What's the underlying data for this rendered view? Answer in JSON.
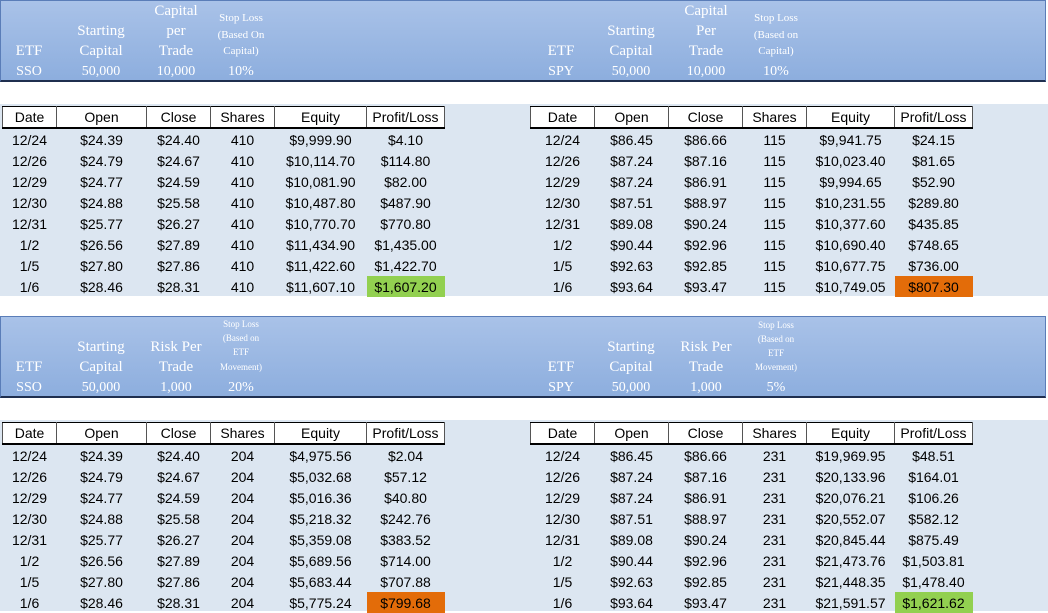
{
  "sections": [
    {
      "band": {
        "left": {
          "labels": {
            "etf": "ETF",
            "starting_l1": "Starting",
            "starting_l2": "Capital",
            "capital_l1": "Capital",
            "capital_l2": "per",
            "capital_l3": "Trade",
            "stop_l1": "Stop Loss",
            "stop_l2": "(Based On",
            "stop_l3": "Capital)"
          },
          "values": {
            "etf": "SSO",
            "starting": "50,000",
            "capital": "10,000",
            "stop": "10%"
          }
        },
        "right": {
          "labels": {
            "etf": "ETF",
            "starting_l1": "Starting",
            "starting_l2": "Capital",
            "capital_l1": "Capital",
            "capital_l2": "Per",
            "capital_l3": "Trade",
            "stop_l1": "Stop Loss",
            "stop_l2": "(Based on",
            "stop_l3": "Capital)"
          },
          "values": {
            "etf": "SPY",
            "starting": "50,000",
            "capital": "10,000",
            "stop": "10%"
          }
        }
      },
      "tables": {
        "left": {
          "headers": [
            "Date",
            "Open",
            "Close",
            "Shares",
            "Equity",
            "Profit/Loss"
          ],
          "rows": [
            [
              "12/24",
              "$24.39",
              "$24.40",
              "410",
              "$9,999.90",
              "$4.10"
            ],
            [
              "12/26",
              "$24.79",
              "$24.67",
              "410",
              "$10,114.70",
              "$114.80"
            ],
            [
              "12/29",
              "$24.77",
              "$24.59",
              "410",
              "$10,081.90",
              "$82.00"
            ],
            [
              "12/30",
              "$24.88",
              "$25.58",
              "410",
              "$10,487.80",
              "$487.90"
            ],
            [
              "12/31",
              "$25.77",
              "$26.27",
              "410",
              "$10,770.70",
              "$770.80"
            ],
            [
              "1/2",
              "$26.56",
              "$27.89",
              "410",
              "$11,434.90",
              "$1,435.00"
            ],
            [
              "1/5",
              "$27.80",
              "$27.86",
              "410",
              "$11,422.60",
              "$1,422.70"
            ],
            [
              "1/6",
              "$28.46",
              "$28.31",
              "410",
              "$11,607.10",
              "$1,607.20"
            ]
          ],
          "highlight": "green"
        },
        "right": {
          "headers": [
            "Date",
            "Open",
            "Close",
            "Shares",
            "Equity",
            "Profit/Loss"
          ],
          "rows": [
            [
              "12/24",
              "$86.45",
              "$86.66",
              "115",
              "$9,941.75",
              "$24.15"
            ],
            [
              "12/26",
              "$87.24",
              "$87.16",
              "115",
              "$10,023.40",
              "$81.65"
            ],
            [
              "12/29",
              "$87.24",
              "$86.91",
              "115",
              "$9,994.65",
              "$52.90"
            ],
            [
              "12/30",
              "$87.51",
              "$88.97",
              "115",
              "$10,231.55",
              "$289.80"
            ],
            [
              "12/31",
              "$89.08",
              "$90.24",
              "115",
              "$10,377.60",
              "$435.85"
            ],
            [
              "1/2",
              "$90.44",
              "$92.96",
              "115",
              "$10,690.40",
              "$748.65"
            ],
            [
              "1/5",
              "$92.63",
              "$92.85",
              "115",
              "$10,677.75",
              "$736.00"
            ],
            [
              "1/6",
              "$93.64",
              "$93.47",
              "115",
              "$10,749.05",
              "$807.30"
            ]
          ],
          "highlight": "orange"
        }
      }
    },
    {
      "band": {
        "left": {
          "labels": {
            "etf": "ETF",
            "starting_l1": "Starting",
            "starting_l2": "Capital",
            "risk_l1": "Risk Per",
            "risk_l2": "Trade",
            "stop_l1": "Stop Loss",
            "stop_l2": "(Based on",
            "stop_l3": "ETF",
            "stop_l4": "Movement)"
          },
          "values": {
            "etf": "SSO",
            "starting": "50,000",
            "risk": "1,000",
            "stop": "20%"
          }
        },
        "right": {
          "labels": {
            "etf": "ETF",
            "starting_l1": "Starting",
            "starting_l2": "Capital",
            "risk_l1": "Risk Per",
            "risk_l2": "Trade",
            "stop_l1": "Stop Loss",
            "stop_l2": "(Based on",
            "stop_l3": "ETF",
            "stop_l4": "Movement)"
          },
          "values": {
            "etf": "SPY",
            "starting": "50,000",
            "risk": "1,000",
            "stop": "5%"
          }
        }
      },
      "tables": {
        "left": {
          "headers": [
            "Date",
            "Open",
            "Close",
            "Shares",
            "Equity",
            "Profit/Loss"
          ],
          "rows": [
            [
              "12/24",
              "$24.39",
              "$24.40",
              "204",
              "$4,975.56",
              "$2.04"
            ],
            [
              "12/26",
              "$24.79",
              "$24.67",
              "204",
              "$5,032.68",
              "$57.12"
            ],
            [
              "12/29",
              "$24.77",
              "$24.59",
              "204",
              "$5,016.36",
              "$40.80"
            ],
            [
              "12/30",
              "$24.88",
              "$25.58",
              "204",
              "$5,218.32",
              "$242.76"
            ],
            [
              "12/31",
              "$25.77",
              "$26.27",
              "204",
              "$5,359.08",
              "$383.52"
            ],
            [
              "1/2",
              "$26.56",
              "$27.89",
              "204",
              "$5,689.56",
              "$714.00"
            ],
            [
              "1/5",
              "$27.80",
              "$27.86",
              "204",
              "$5,683.44",
              "$707.88"
            ],
            [
              "1/6",
              "$28.46",
              "$28.31",
              "204",
              "$5,775.24",
              "$799.68"
            ]
          ],
          "highlight": "orange"
        },
        "right": {
          "headers": [
            "Date",
            "Open",
            "Close",
            "Shares",
            "Equity",
            "Profit/Loss"
          ],
          "rows": [
            [
              "12/24",
              "$86.45",
              "$86.66",
              "231",
              "$19,969.95",
              "$48.51"
            ],
            [
              "12/26",
              "$87.24",
              "$87.16",
              "231",
              "$20,133.96",
              "$164.01"
            ],
            [
              "12/29",
              "$87.24",
              "$86.91",
              "231",
              "$20,076.21",
              "$106.26"
            ],
            [
              "12/30",
              "$87.51",
              "$88.97",
              "231",
              "$20,552.07",
              "$582.12"
            ],
            [
              "12/31",
              "$89.08",
              "$90.24",
              "231",
              "$20,845.44",
              "$875.49"
            ],
            [
              "1/2",
              "$90.44",
              "$92.96",
              "231",
              "$21,473.76",
              "$1,503.81"
            ],
            [
              "1/5",
              "$92.63",
              "$92.85",
              "231",
              "$21,448.35",
              "$1,478.40"
            ],
            [
              "1/6",
              "$93.64",
              "$93.47",
              "231",
              "$21,591.57",
              "$1,621.62"
            ]
          ],
          "highlight": "green"
        }
      }
    }
  ]
}
